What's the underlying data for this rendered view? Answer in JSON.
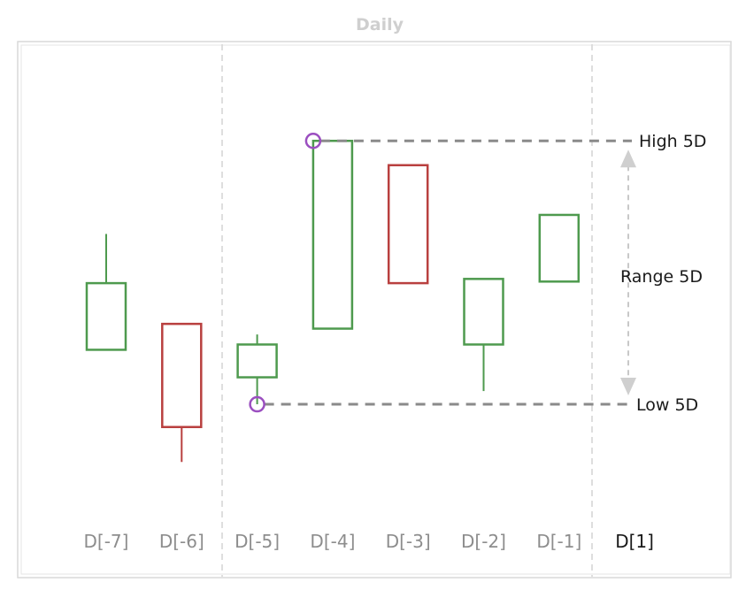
{
  "chart_data": {
    "type": "candlestick",
    "title": "Daily",
    "categories": [
      "D[-7]",
      "D[-6]",
      "D[-5]",
      "D[-4]",
      "D[-3]",
      "D[-2]",
      "D[-1]",
      "D[1]"
    ],
    "candles": [
      {
        "label": "D[-7]",
        "open": 42.4,
        "close": 55.0,
        "high": 64.3,
        "low": 42.4,
        "direction": "up"
      },
      {
        "label": "D[-6]",
        "open": 47.3,
        "close": 27.8,
        "high": 47.3,
        "low": 21.2,
        "direction": "down"
      },
      {
        "label": "D[-5]",
        "open": 37.2,
        "close": 43.4,
        "high": 45.3,
        "low": 32.1,
        "direction": "up"
      },
      {
        "label": "D[-4]",
        "open": 46.4,
        "close": 81.9,
        "high": 81.9,
        "low": 46.4,
        "direction": "up"
      },
      {
        "label": "D[-3]",
        "open": 77.3,
        "close": 55.0,
        "high": 77.3,
        "low": 55.0,
        "direction": "down"
      },
      {
        "label": "D[-2]",
        "open": 43.4,
        "close": 55.8,
        "high": 55.8,
        "low": 34.6,
        "direction": "up"
      },
      {
        "label": "D[-1]",
        "open": 55.3,
        "close": 67.9,
        "high": 67.9,
        "low": 55.3,
        "direction": "up"
      }
    ],
    "high_5d": 81.9,
    "low_5d": 32.1,
    "annotations": {
      "high_label": "High 5D",
      "low_label": "Low 5D",
      "range_label": "Range 5D"
    },
    "window_start_label": "D[-5]",
    "window_end_label": "D[-1]",
    "current_label": "D[1]",
    "ylim": [
      0,
      100
    ],
    "grid": false,
    "colors": {
      "up": "#4e9a4e",
      "down": "#b9403f",
      "marker": "#9b4fc0",
      "guide": "#8a8a8a",
      "arrow": "#c8c8c8",
      "frame": "#d9d9d9",
      "divider": "#d4d4d4"
    }
  }
}
